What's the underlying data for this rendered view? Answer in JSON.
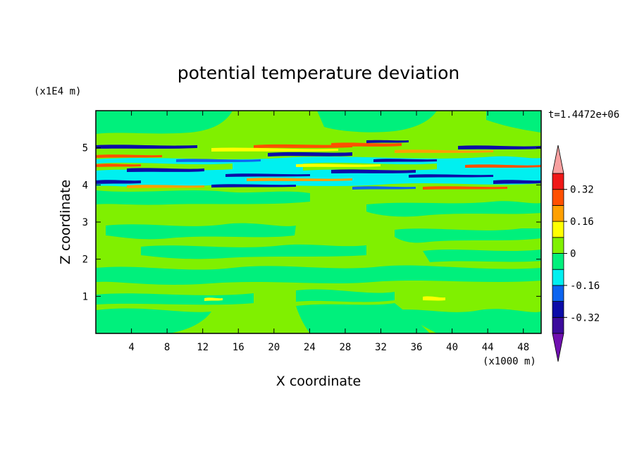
{
  "chart_data": {
    "type": "heatmap",
    "title": "potential temperature deviation",
    "xlabel": "X coordinate",
    "ylabel": "Z coordinate",
    "x_unit": "(x1000 m)",
    "y_unit": "(x1E4 m)",
    "time_label": "t=1.4472e+06",
    "xlim": [
      0,
      50
    ],
    "ylim": [
      0,
      6
    ],
    "x_ticks": [
      "4",
      "8",
      "12",
      "16",
      "20",
      "24",
      "28",
      "32",
      "36",
      "40",
      "44",
      "48"
    ],
    "y_ticks": [
      "1",
      "2",
      "3",
      "4",
      "5"
    ],
    "x_tick_values": [
      4,
      8,
      12,
      16,
      20,
      24,
      28,
      32,
      36,
      40,
      44,
      48
    ],
    "y_tick_values": [
      1,
      2,
      3,
      4,
      5
    ],
    "colorbar": {
      "levels": [
        -0.4,
        -0.32,
        -0.24,
        -0.16,
        -0.08,
        0,
        0.08,
        0.16,
        0.24,
        0.32,
        0.4
      ],
      "tick_labels": [
        "0.32",
        "0.16",
        "0",
        "-0.16",
        "-0.32"
      ],
      "tick_values": [
        0.32,
        0.16,
        0,
        -0.16,
        -0.32
      ],
      "colors": [
        "#7010b0",
        "#3c0c9c",
        "#0c0ca8",
        "#0c64f0",
        "#00f0f0",
        "#00f07c",
        "#80f000",
        "#ffff00",
        "#ffa000",
        "#ff5000",
        "#f01818",
        "#f8a0a0"
      ]
    },
    "field_description_bands": [
      {
        "z_range": [
          3.9,
          5.1
        ],
        "character": "strong alternating warm and cold layers"
      },
      {
        "z_range": [
          0,
          3.9
        ],
        "character": "weak deviations near zero"
      },
      {
        "z_range": [
          5.1,
          6
        ],
        "character": "weak deviations near zero"
      }
    ]
  }
}
